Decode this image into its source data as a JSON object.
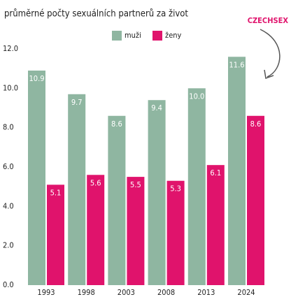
{
  "chart_data": {
    "type": "bar",
    "title": "průměrné počty sexuálních partnerů za život",
    "annotations": [
      "CZECHSEX"
    ],
    "categories": [
      "1993",
      "1998",
      "2003",
      "2008",
      "2013",
      "2024"
    ],
    "series": [
      {
        "name": "muži",
        "color": "#8fb6a1",
        "values": [
          10.9,
          9.7,
          8.6,
          9.4,
          10.0,
          11.6
        ],
        "value_labels": [
          "10.9",
          "9.7",
          "8.6",
          "9.4",
          "10.0",
          "11.6"
        ]
      },
      {
        "name": "ženy",
        "color": "#e0136c",
        "values": [
          5.1,
          5.6,
          5.5,
          5.3,
          6.1,
          8.6
        ],
        "value_labels": [
          "5.1",
          "5.6",
          "5.5",
          "5.3",
          "6.1",
          "8.6"
        ]
      }
    ],
    "ylim": [
      0,
      12
    ],
    "yticks": [
      {
        "value": 0,
        "label": "0.0"
      },
      {
        "value": 2,
        "label": "2.0"
      },
      {
        "value": 4,
        "label": "4.0"
      },
      {
        "value": 6,
        "label": "6.0"
      },
      {
        "value": 8,
        "label": "8.0"
      },
      {
        "value": 10,
        "label": "10.0"
      },
      {
        "value": 12,
        "label": "12.0"
      }
    ],
    "grid": false,
    "legend": "top"
  }
}
